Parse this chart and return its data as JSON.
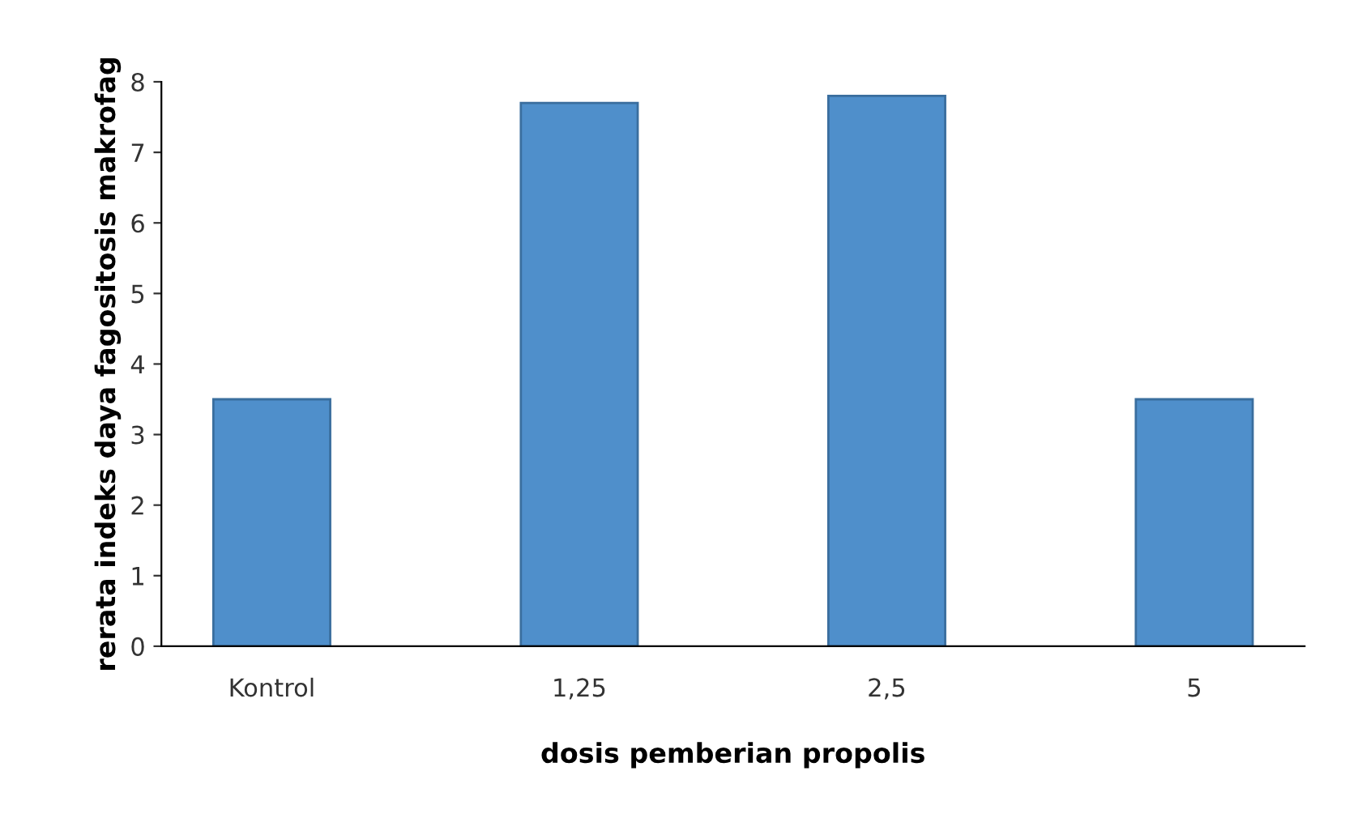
{
  "chart_data": {
    "type": "bar",
    "xlabel": "dosis pemberian propolis",
    "ylabel": "rerata indeks daya fagositosis makrofag",
    "categories": [
      "Kontrol",
      "1,25",
      "2,5",
      "5"
    ],
    "values": [
      3.5,
      7.7,
      7.8,
      3.5
    ],
    "color": "#4f8fcb",
    "ylim": [
      0,
      8
    ],
    "yticks": [
      0,
      1,
      2,
      3,
      4,
      5,
      6,
      7,
      8
    ],
    "grid": false
  }
}
